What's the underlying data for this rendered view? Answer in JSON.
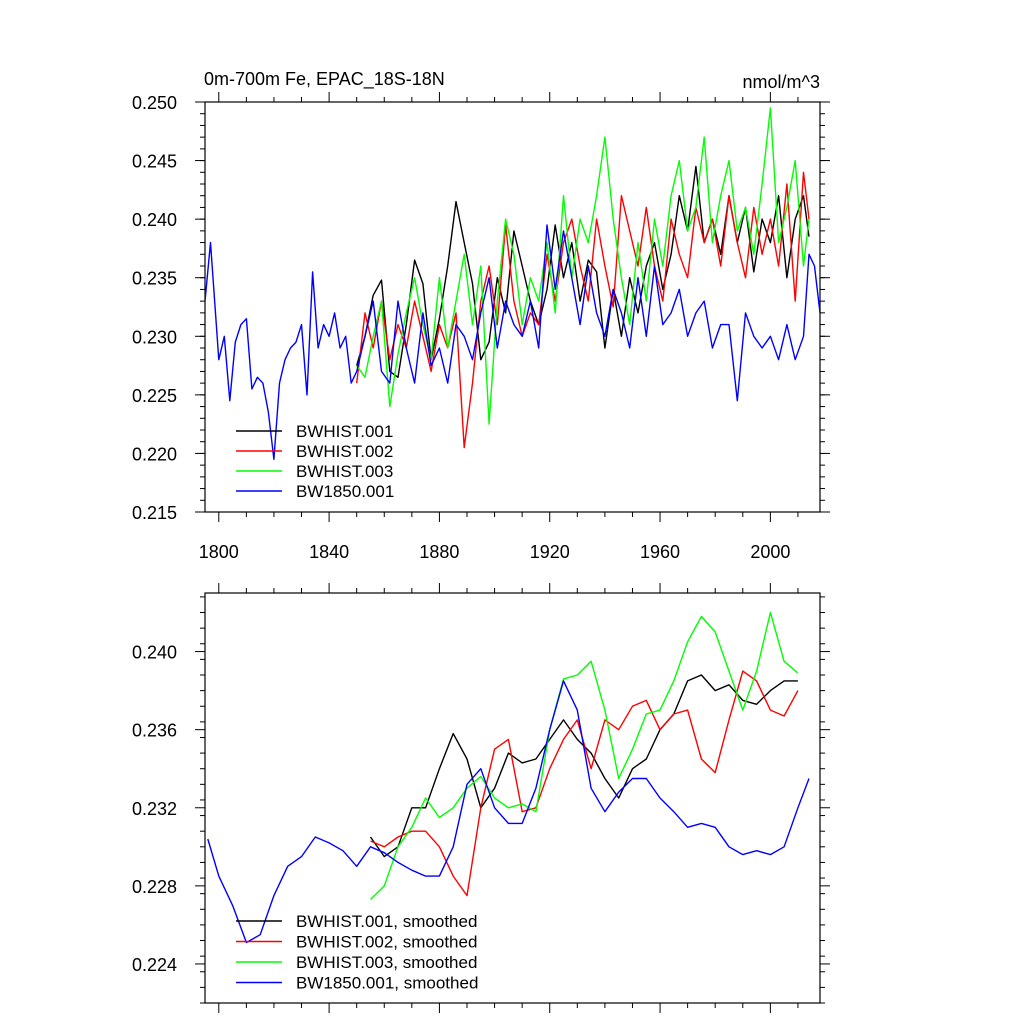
{
  "chart_data": [
    {
      "type": "line",
      "title": "0m-700m Fe, EPAC_18S-18N",
      "units": "nmol/m^3",
      "xlabel": "",
      "ylabel": "",
      "xlim": [
        1795,
        2018
      ],
      "ylim": [
        0.215,
        0.25
      ],
      "xticks": [
        1800,
        1840,
        1880,
        1920,
        1960,
        2000
      ],
      "yticks": [
        "0.215",
        "0.220",
        "0.225",
        "0.230",
        "0.235",
        "0.240",
        "0.245",
        "0.250"
      ],
      "legend_position": "bottom-left",
      "series": [
        {
          "name": "BWHIST.001",
          "color": "#000000",
          "x": [
            1850,
            1853,
            1856,
            1859,
            1862,
            1865,
            1868,
            1871,
            1874,
            1877,
            1880,
            1883,
            1886,
            1889,
            1892,
            1895,
            1898,
            1901,
            1904,
            1907,
            1910,
            1913,
            1916,
            1919,
            1922,
            1925,
            1928,
            1931,
            1934,
            1937,
            1940,
            1943,
            1946,
            1949,
            1952,
            1955,
            1958,
            1961,
            1964,
            1967,
            1970,
            1973,
            1976,
            1979,
            1982,
            1985,
            1988,
            1991,
            1994,
            1997,
            2000,
            2003,
            2006,
            2009,
            2012,
            2014
          ],
          "values": [
            0.2275,
            0.23,
            0.2335,
            0.2348,
            0.227,
            0.2265,
            0.231,
            0.2365,
            0.2345,
            0.228,
            0.2315,
            0.236,
            0.2415,
            0.238,
            0.2345,
            0.228,
            0.2295,
            0.235,
            0.232,
            0.239,
            0.236,
            0.233,
            0.231,
            0.234,
            0.2395,
            0.235,
            0.238,
            0.233,
            0.2365,
            0.2355,
            0.229,
            0.234,
            0.23,
            0.235,
            0.232,
            0.236,
            0.238,
            0.234,
            0.237,
            0.242,
            0.239,
            0.2445,
            0.238,
            0.24,
            0.237,
            0.242,
            0.238,
            0.241,
            0.2355,
            0.24,
            0.238,
            0.242,
            0.235,
            0.24,
            0.242,
            0.2385
          ]
        },
        {
          "name": "BWHIST.002",
          "color": "#ff0000",
          "x": [
            1850,
            1853,
            1856,
            1859,
            1862,
            1865,
            1868,
            1871,
            1874,
            1877,
            1880,
            1883,
            1886,
            1889,
            1892,
            1895,
            1898,
            1901,
            1904,
            1907,
            1910,
            1913,
            1916,
            1919,
            1922,
            1925,
            1928,
            1931,
            1934,
            1937,
            1940,
            1943,
            1946,
            1949,
            1952,
            1955,
            1958,
            1961,
            1964,
            1967,
            1970,
            1973,
            1976,
            1979,
            1982,
            1985,
            1988,
            1991,
            1994,
            1997,
            2000,
            2003,
            2006,
            2009,
            2012,
            2014
          ],
          "values": [
            0.226,
            0.232,
            0.229,
            0.233,
            0.228,
            0.231,
            0.229,
            0.233,
            0.23,
            0.227,
            0.231,
            0.229,
            0.232,
            0.2205,
            0.226,
            0.233,
            0.236,
            0.231,
            0.2395,
            0.233,
            0.23,
            0.232,
            0.231,
            0.237,
            0.233,
            0.238,
            0.24,
            0.236,
            0.233,
            0.24,
            0.236,
            0.2325,
            0.242,
            0.239,
            0.236,
            0.241,
            0.236,
            0.233,
            0.24,
            0.237,
            0.235,
            0.241,
            0.238,
            0.24,
            0.236,
            0.242,
            0.238,
            0.235,
            0.241,
            0.237,
            0.24,
            0.236,
            0.243,
            0.233,
            0.244,
            0.24
          ]
        },
        {
          "name": "BWHIST.003",
          "color": "#00ff00",
          "x": [
            1850,
            1853,
            1856,
            1859,
            1862,
            1865,
            1868,
            1871,
            1874,
            1877,
            1880,
            1883,
            1886,
            1889,
            1892,
            1895,
            1898,
            1901,
            1904,
            1907,
            1910,
            1913,
            1916,
            1919,
            1922,
            1925,
            1928,
            1931,
            1934,
            1937,
            1940,
            1943,
            1946,
            1949,
            1952,
            1955,
            1958,
            1961,
            1964,
            1967,
            1970,
            1973,
            1976,
            1979,
            1982,
            1985,
            1988,
            1991,
            1994,
            1997,
            2000,
            2003,
            2006,
            2009,
            2012,
            2014
          ],
          "values": [
            0.2275,
            0.2265,
            0.23,
            0.233,
            0.224,
            0.2285,
            0.232,
            0.235,
            0.231,
            0.228,
            0.235,
            0.229,
            0.233,
            0.237,
            0.231,
            0.236,
            0.2225,
            0.233,
            0.24,
            0.237,
            0.231,
            0.235,
            0.233,
            0.238,
            0.232,
            0.242,
            0.235,
            0.24,
            0.238,
            0.242,
            0.247,
            0.24,
            0.235,
            0.231,
            0.238,
            0.233,
            0.24,
            0.236,
            0.242,
            0.245,
            0.239,
            0.241,
            0.247,
            0.238,
            0.242,
            0.245,
            0.239,
            0.241,
            0.237,
            0.243,
            0.2495,
            0.238,
            0.241,
            0.245,
            0.236,
            0.24
          ]
        },
        {
          "name": "BW1850.001",
          "color": "#0000ff",
          "x": [
            1795,
            1797,
            1800,
            1802,
            1804,
            1806,
            1808,
            1810,
            1812,
            1814,
            1816,
            1818,
            1820,
            1822,
            1824,
            1826,
            1828,
            1830,
            1832,
            1834,
            1836,
            1838,
            1840,
            1842,
            1844,
            1846,
            1848,
            1850,
            1853,
            1856,
            1859,
            1862,
            1865,
            1868,
            1871,
            1874,
            1877,
            1880,
            1883,
            1886,
            1889,
            1892,
            1895,
            1898,
            1901,
            1904,
            1907,
            1910,
            1913,
            1916,
            1919,
            1922,
            1925,
            1928,
            1931,
            1934,
            1937,
            1940,
            1943,
            1946,
            1949,
            1952,
            1955,
            1958,
            1961,
            1964,
            1967,
            1970,
            1973,
            1976,
            1979,
            1982,
            1985,
            1988,
            1991,
            1994,
            1997,
            2000,
            2003,
            2006,
            2009,
            2012,
            2014,
            2016,
            2018
          ],
          "values": [
            0.233,
            0.238,
            0.228,
            0.23,
            0.2245,
            0.2295,
            0.231,
            0.2315,
            0.2255,
            0.2265,
            0.226,
            0.2235,
            0.2195,
            0.226,
            0.228,
            0.229,
            0.2295,
            0.231,
            0.225,
            0.2355,
            0.229,
            0.231,
            0.23,
            0.232,
            0.229,
            0.23,
            0.226,
            0.227,
            0.23,
            0.233,
            0.227,
            0.226,
            0.233,
            0.229,
            0.226,
            0.232,
            0.2275,
            0.229,
            0.226,
            0.231,
            0.23,
            0.228,
            0.232,
            0.235,
            0.229,
            0.233,
            0.231,
            0.23,
            0.233,
            0.229,
            0.2395,
            0.234,
            0.239,
            0.235,
            0.231,
            0.236,
            0.232,
            0.23,
            0.234,
            0.232,
            0.229,
            0.235,
            0.23,
            0.236,
            0.231,
            0.232,
            0.234,
            0.23,
            0.232,
            0.233,
            0.229,
            0.231,
            0.231,
            0.2245,
            0.232,
            0.23,
            0.229,
            0.23,
            0.228,
            0.231,
            0.228,
            0.23,
            0.237,
            0.236,
            0.232
          ]
        }
      ]
    },
    {
      "type": "line",
      "title": "",
      "xlabel": "",
      "ylabel": "",
      "xlim": [
        1795,
        2018
      ],
      "ylim": [
        0.222,
        0.243
      ],
      "xticks": [
        1800,
        1840,
        1880,
        1920,
        1960,
        2000
      ],
      "yticks": [
        "0.224",
        "0.228",
        "0.232",
        "0.236",
        "0.240"
      ],
      "legend_position": "bottom-left",
      "series": [
        {
          "name": "BWHIST.001, smoothed",
          "color": "#000000",
          "x": [
            1855,
            1860,
            1865,
            1870,
            1875,
            1880,
            1885,
            1890,
            1895,
            1900,
            1905,
            1910,
            1915,
            1920,
            1925,
            1930,
            1935,
            1940,
            1945,
            1950,
            1955,
            1960,
            1965,
            1970,
            1975,
            1980,
            1985,
            1990,
            1995,
            2000,
            2005,
            2010
          ],
          "values": [
            0.2305,
            0.2295,
            0.23,
            0.232,
            0.232,
            0.234,
            0.2358,
            0.2345,
            0.232,
            0.233,
            0.2348,
            0.2343,
            0.2345,
            0.2355,
            0.2365,
            0.2355,
            0.2348,
            0.2335,
            0.2325,
            0.234,
            0.2345,
            0.236,
            0.2368,
            0.2385,
            0.2388,
            0.238,
            0.2383,
            0.2375,
            0.2373,
            0.238,
            0.2385,
            0.2385
          ]
        },
        {
          "name": "BWHIST.002, smoothed",
          "color": "#ff0000",
          "x": [
            1855,
            1860,
            1865,
            1870,
            1875,
            1880,
            1885,
            1890,
            1895,
            1900,
            1905,
            1910,
            1915,
            1920,
            1925,
            1930,
            1935,
            1940,
            1945,
            1950,
            1955,
            1960,
            1965,
            1970,
            1975,
            1980,
            1985,
            1990,
            1995,
            2000,
            2005,
            2010
          ],
          "values": [
            0.2303,
            0.23,
            0.2305,
            0.2308,
            0.2308,
            0.23,
            0.2285,
            0.2275,
            0.232,
            0.235,
            0.2355,
            0.2318,
            0.232,
            0.234,
            0.2355,
            0.2365,
            0.234,
            0.2365,
            0.236,
            0.2372,
            0.2375,
            0.236,
            0.2368,
            0.237,
            0.2345,
            0.2338,
            0.2365,
            0.239,
            0.2385,
            0.237,
            0.2367,
            0.238
          ]
        },
        {
          "name": "BWHIST.003, smoothed",
          "color": "#00ff00",
          "x": [
            1855,
            1860,
            1865,
            1870,
            1875,
            1880,
            1885,
            1890,
            1895,
            1900,
            1905,
            1910,
            1915,
            1920,
            1925,
            1930,
            1935,
            1940,
            1945,
            1950,
            1955,
            1960,
            1965,
            1970,
            1975,
            1980,
            1985,
            1990,
            1995,
            2000,
            2005,
            2010
          ],
          "values": [
            0.2273,
            0.228,
            0.23,
            0.231,
            0.2325,
            0.2315,
            0.232,
            0.233,
            0.2336,
            0.2325,
            0.232,
            0.2322,
            0.2318,
            0.236,
            0.2386,
            0.2388,
            0.2395,
            0.237,
            0.2335,
            0.235,
            0.2368,
            0.237,
            0.2385,
            0.2405,
            0.2418,
            0.241,
            0.239,
            0.237,
            0.239,
            0.242,
            0.2395,
            0.2389
          ]
        },
        {
          "name": "BW1850.001, smoothed",
          "color": "#0000ff",
          "x": [
            1796,
            1800,
            1805,
            1810,
            1815,
            1820,
            1825,
            1830,
            1835,
            1840,
            1845,
            1850,
            1855,
            1860,
            1865,
            1870,
            1875,
            1880,
            1885,
            1890,
            1895,
            1900,
            1905,
            1910,
            1915,
            1920,
            1925,
            1930,
            1935,
            1940,
            1945,
            1950,
            1955,
            1960,
            1965,
            1970,
            1975,
            1980,
            1985,
            1990,
            1995,
            2000,
            2005,
            2010,
            2014
          ],
          "values": [
            0.2304,
            0.2285,
            0.227,
            0.2251,
            0.2255,
            0.2275,
            0.229,
            0.2295,
            0.2305,
            0.2302,
            0.2298,
            0.229,
            0.23,
            0.2297,
            0.2292,
            0.2288,
            0.2285,
            0.2285,
            0.23,
            0.2332,
            0.234,
            0.232,
            0.2312,
            0.2312,
            0.233,
            0.236,
            0.2385,
            0.237,
            0.233,
            0.2318,
            0.2328,
            0.2335,
            0.2335,
            0.2325,
            0.2318,
            0.231,
            0.2312,
            0.231,
            0.23,
            0.2296,
            0.2298,
            0.2296,
            0.23,
            0.232,
            0.2335
          ]
        }
      ]
    }
  ]
}
